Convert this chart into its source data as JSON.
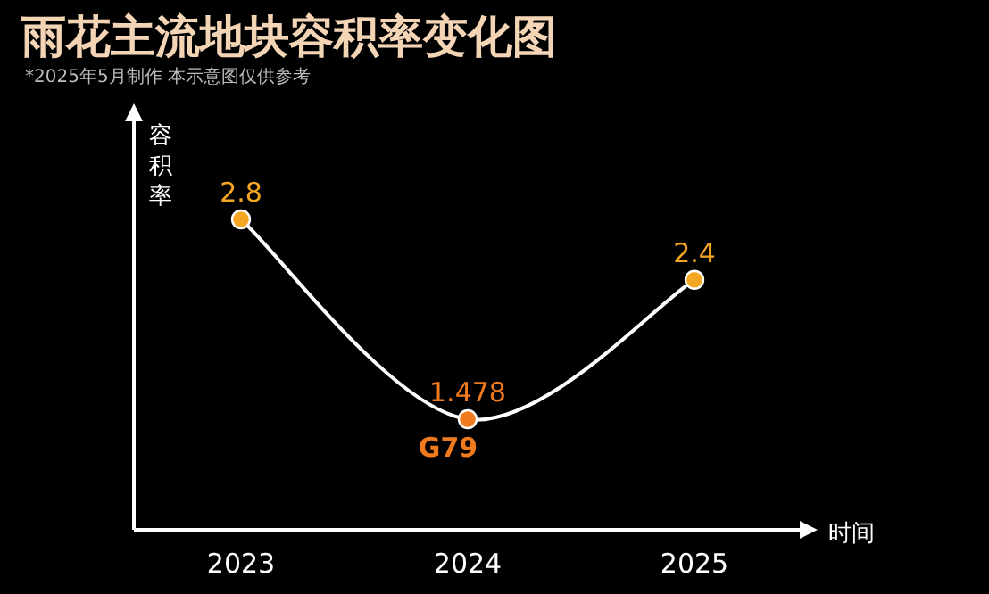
{
  "chart_data": {
    "type": "line",
    "title": "雨花主流地块容积率变化图",
    "subtitle": "*2025年5月制作 本示意图仅供参考",
    "xlabel": "时间",
    "ylabel": "容积率",
    "categories": [
      "2023",
      "2024",
      "2025"
    ],
    "series": [
      {
        "color": "#ffffff",
        "colors": [
          "#f5a623",
          "#f07a1e",
          "#f5a623"
        ],
        "values": [
          2.8,
          1.478,
          2.4
        ]
      }
    ],
    "annotations": [
      {
        "text": "G79",
        "x": "2024",
        "y": 1.478
      }
    ],
    "data_labels": true,
    "marker": "circle",
    "line_style": "solid"
  }
}
